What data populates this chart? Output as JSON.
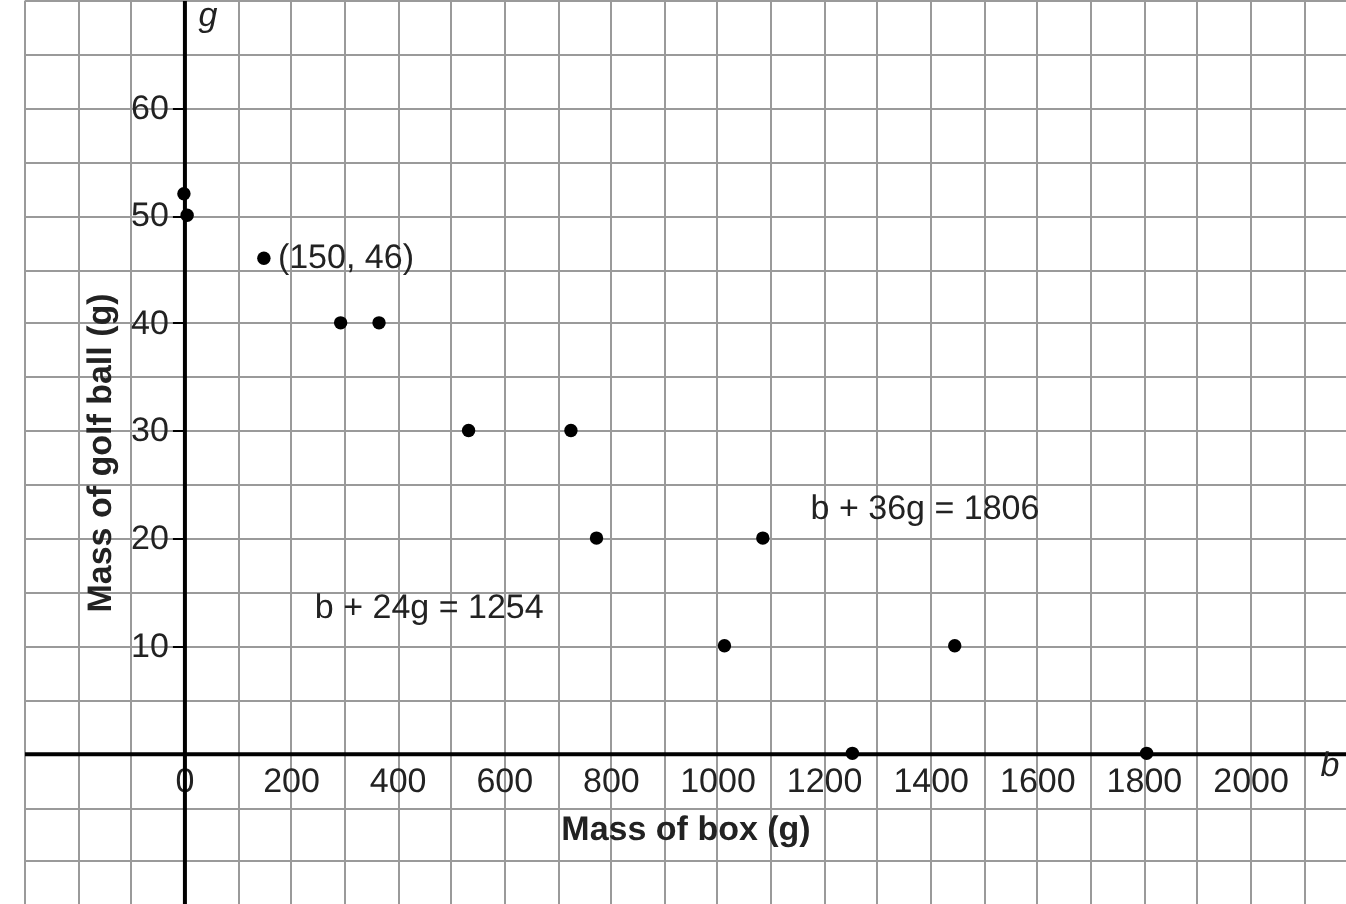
{
  "chart_data": {
    "type": "scatter",
    "xlabel": "Mass of box (g)",
    "ylabel": "Mass of golf ball (g)",
    "x": [
      0,
      6,
      150,
      294,
      366,
      534,
      726,
      774,
      1086,
      1014,
      1446,
      1254,
      1806
    ],
    "series": [
      {
        "color": "#000000",
        "values": [
          52,
          50,
          46,
          40,
          40,
          30,
          30,
          20,
          20,
          10,
          10,
          0,
          0
        ]
      }
    ],
    "marker": "circle",
    "grid": true,
    "xlim": [
      -300,
      2180
    ],
    "ylim": [
      -14,
      70
    ],
    "xticks": [
      {
        "value": -300,
        "label": null
      },
      {
        "value": -200,
        "label": null
      },
      {
        "value": -100,
        "label": null
      },
      0,
      {
        "value": 100,
        "label": null
      },
      200,
      {
        "value": 300,
        "label": null
      },
      400,
      {
        "value": 500,
        "label": null
      },
      600,
      {
        "value": 700,
        "label": null
      },
      800,
      {
        "value": 900,
        "label": null
      },
      1000,
      {
        "value": 1100,
        "label": null
      },
      1200,
      {
        "value": 1300,
        "label": null
      },
      1400,
      {
        "value": 1500,
        "label": null
      },
      1600,
      {
        "value": 1700,
        "label": null
      },
      1800,
      {
        "value": 1900,
        "label": null
      },
      2000,
      {
        "value": 2100,
        "label": null
      }
    ],
    "yticks": [
      {
        "value": -10,
        "label": null
      },
      {
        "value": -5,
        "label": null
      },
      {
        "value": 0,
        "label": null
      },
      {
        "value": 5,
        "label": null
      },
      10,
      {
        "value": 15,
        "label": null
      },
      20,
      {
        "value": 25,
        "label": null
      },
      30,
      {
        "value": 35,
        "label": null
      },
      40,
      {
        "value": 45,
        "label": null
      },
      50,
      {
        "value": 55,
        "label": null
      },
      60,
      {
        "value": 65,
        "label": null
      },
      {
        "value": 70,
        "label": null
      }
    ],
    "annotations": [
      {
        "text": "(150, 46)",
        "x": 150,
        "y": 46
      },
      "b + 24g = 1254",
      "b + 36g = 1806",
      "b",
      "g"
    ]
  }
}
